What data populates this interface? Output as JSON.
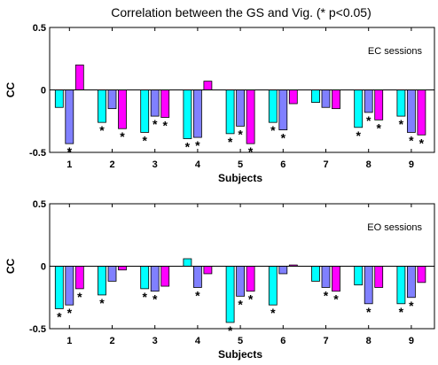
{
  "figure": {
    "title": "Correlation between the GS and Vig. (* p<0.05)"
  },
  "chart_data": [
    {
      "type": "bar",
      "panel_label": "EC sessions",
      "xlabel": "Subjects",
      "ylabel": "CC",
      "categories": [
        "1",
        "2",
        "3",
        "4",
        "5",
        "6",
        "7",
        "8",
        "9"
      ],
      "ylim": [
        -0.5,
        0.5
      ],
      "yticks": [
        "0.5",
        "0",
        "-0.5"
      ],
      "ytick_values": [
        0.5,
        0,
        -0.5
      ],
      "grid": false,
      "significance_marker": "*",
      "series": [
        {
          "color": "#00ffff",
          "values": [
            -0.14,
            -0.26,
            -0.34,
            -0.39,
            -0.35,
            -0.26,
            -0.1,
            -0.3,
            -0.21
          ],
          "significant": [
            false,
            true,
            true,
            true,
            true,
            true,
            false,
            true,
            true
          ]
        },
        {
          "color": "#8080ff",
          "values": [
            -0.43,
            -0.15,
            -0.21,
            -0.38,
            -0.29,
            -0.32,
            -0.14,
            -0.18,
            -0.34
          ],
          "significant": [
            true,
            false,
            true,
            true,
            true,
            true,
            false,
            true,
            true
          ]
        },
        {
          "color": "#ff00ff",
          "values": [
            0.2,
            -0.31,
            -0.22,
            0.07,
            -0.43,
            -0.11,
            -0.15,
            -0.24,
            -0.36
          ],
          "significant": [
            false,
            true,
            true,
            false,
            true,
            false,
            false,
            true,
            true
          ]
        }
      ]
    },
    {
      "type": "bar",
      "panel_label": "EO sessions",
      "xlabel": "Subjects",
      "ylabel": "CC",
      "categories": [
        "1",
        "2",
        "3",
        "4",
        "5",
        "6",
        "7",
        "8",
        "9"
      ],
      "ylim": [
        -0.5,
        0.5
      ],
      "yticks": [
        "0.5",
        "0",
        "-0.5"
      ],
      "ytick_values": [
        0.5,
        0,
        -0.5
      ],
      "grid": false,
      "significance_marker": "*",
      "series": [
        {
          "color": "#00ffff",
          "values": [
            -0.34,
            -0.23,
            -0.18,
            0.06,
            -0.45,
            -0.31,
            -0.12,
            -0.15,
            -0.3
          ],
          "significant": [
            true,
            true,
            true,
            false,
            true,
            true,
            false,
            false,
            true
          ]
        },
        {
          "color": "#8080ff",
          "values": [
            -0.31,
            -0.12,
            -0.2,
            -0.17,
            -0.24,
            -0.06,
            -0.17,
            -0.3,
            -0.25
          ],
          "significant": [
            true,
            false,
            true,
            true,
            true,
            false,
            true,
            true,
            true
          ]
        },
        {
          "color": "#ff00ff",
          "values": [
            -0.18,
            -0.03,
            -0.16,
            -0.06,
            -0.2,
            0.01,
            -0.2,
            -0.17,
            -0.13
          ],
          "significant": [
            true,
            false,
            false,
            false,
            true,
            false,
            true,
            false,
            false
          ]
        }
      ]
    }
  ]
}
